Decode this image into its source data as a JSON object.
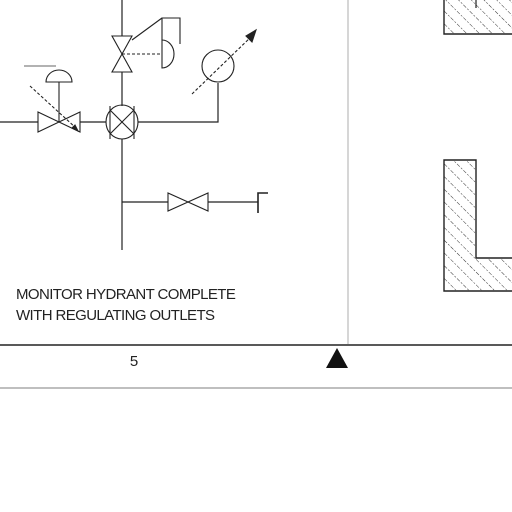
{
  "caption": {
    "line1": "MONITOR HYDRANT COMPLETE",
    "line2": "WITH REGULATING OUTLETS"
  },
  "footer": {
    "sheet_number": "5"
  },
  "symbols": {
    "north_marker": "triangle-marker-icon"
  },
  "colors": {
    "line": "#222222",
    "hatch": "#333333",
    "background": "#ffffff"
  }
}
